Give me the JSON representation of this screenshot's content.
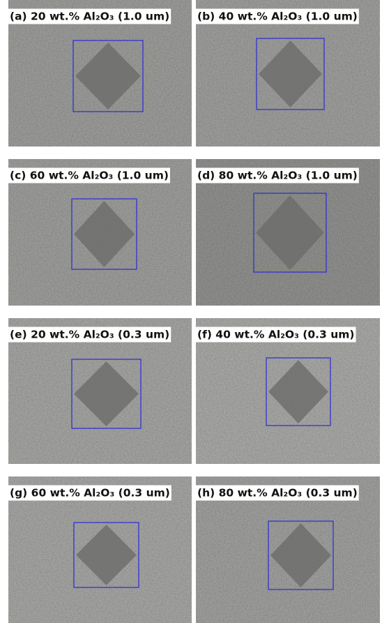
{
  "panels": [
    {
      "label": "(a) 20 wt.% Al₂O₃ (1.0 um)"
    },
    {
      "label": "(b) 40 wt.% Al₂O₃ (1.0 um)"
    },
    {
      "label": "(c) 60 wt.% Al₂O₃ (1.0 um)"
    },
    {
      "label": "(d) 80 wt.% Al₂O₃ (1.0 um)"
    },
    {
      "label": "(e) 20 wt.% Al₂O₃ (0.3 um)"
    },
    {
      "label": "(f) 40 wt.% Al₂O₃ (0.3 um)"
    },
    {
      "label": "(g) 60 wt.% Al₂O₃ (0.3 um)"
    },
    {
      "label": "(h) 80 wt.% Al₂O₃ (0.3 um)"
    }
  ]
}
